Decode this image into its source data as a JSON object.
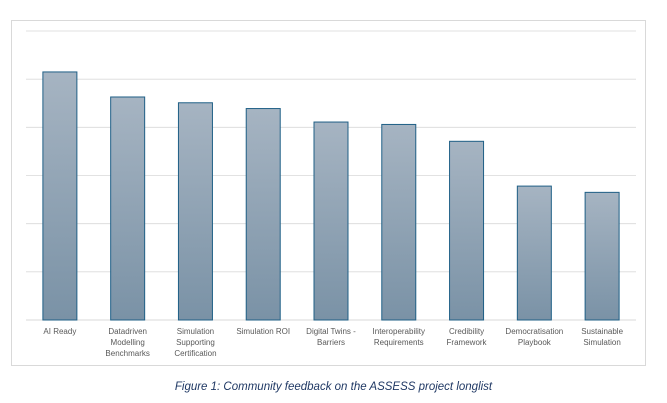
{
  "chart_data": {
    "type": "bar",
    "title": "",
    "xlabel": "",
    "ylabel": "",
    "categories": [
      "AI Ready",
      "Datadriven Modelling Benchmarks",
      "Simulation Supporting Certification",
      "Simulation ROI",
      "Digital Twins - Barriers",
      "Interoperability Requirements",
      "Credibility Framework",
      "Democratisation Playbook",
      "Sustainable Simulation"
    ],
    "category_lines": [
      [
        "AI Ready"
      ],
      [
        "Datadriven",
        "Modelling",
        "Benchmarks"
      ],
      [
        "Simulation",
        "Supporting",
        "Certification"
      ],
      [
        "Simulation ROI"
      ],
      [
        "Digital Twins -",
        "Barriers"
      ],
      [
        "Interoperability",
        "Requirements"
      ],
      [
        "Credibility",
        "Framework"
      ],
      [
        "Democratisation",
        "Playbook"
      ],
      [
        "Sustainable",
        "Simulation"
      ]
    ],
    "values": [
      5.15,
      4.63,
      4.51,
      4.39,
      4.11,
      4.06,
      3.71,
      2.78,
      2.65
    ],
    "ylim": [
      0,
      6
    ],
    "gridlines": 6,
    "grid": true,
    "legend": "none",
    "bar_color_top": "#a6b4c2",
    "bar_color_bottom": "#7a92a6",
    "bar_border": "#1f5f86",
    "grid_color": "#d9d9d9"
  },
  "caption": "Figure 1: Community feedback on the ASSESS project longlist"
}
